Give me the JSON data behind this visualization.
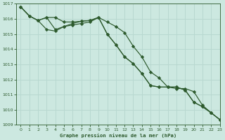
{
  "title": "Graphe pression niveau de la mer (hPa)",
  "background_color": "#cce8e0",
  "grid_color": "#b8d8d0",
  "line_color": "#2d5a2d",
  "ylim": [
    1009,
    1017
  ],
  "yticks": [
    1009,
    1010,
    1011,
    1012,
    1013,
    1014,
    1015,
    1016,
    1017
  ],
  "xlim": [
    -0.5,
    23
  ],
  "xticks": [
    0,
    1,
    2,
    3,
    4,
    5,
    6,
    7,
    8,
    9,
    10,
    11,
    12,
    13,
    14,
    15,
    16,
    17,
    18,
    19,
    20,
    21,
    22,
    23
  ],
  "series": [
    [
      1016.8,
      1016.2,
      1015.9,
      1016.1,
      1016.1,
      1015.8,
      1015.8,
      1015.85,
      1015.9,
      1016.1,
      1015.8,
      1015.5,
      1015.1,
      1014.2,
      1013.5,
      1012.5,
      1012.1,
      1011.5,
      1011.4,
      1011.4,
      1011.2,
      1010.3,
      1009.8,
      1009.35
    ],
    [
      1016.8,
      1016.2,
      1015.9,
      1016.1,
      1015.3,
      1015.5,
      1015.7,
      1015.85,
      1015.9,
      1016.1,
      1015.0,
      1014.3,
      1013.5,
      1013.05,
      1012.4,
      1011.6,
      1011.5,
      1011.5,
      1011.5,
      1011.3,
      1010.5,
      1010.2,
      1009.8,
      1009.35
    ],
    [
      1016.8,
      1016.2,
      1015.9,
      1015.3,
      1015.2,
      1015.5,
      1015.6,
      1015.7,
      1015.8,
      1016.1,
      1015.0,
      1014.3,
      1013.5,
      1013.05,
      1012.4,
      1011.6,
      1011.5,
      1011.5,
      1011.5,
      1011.3,
      1010.5,
      1010.2,
      1009.8,
      1009.35
    ]
  ]
}
